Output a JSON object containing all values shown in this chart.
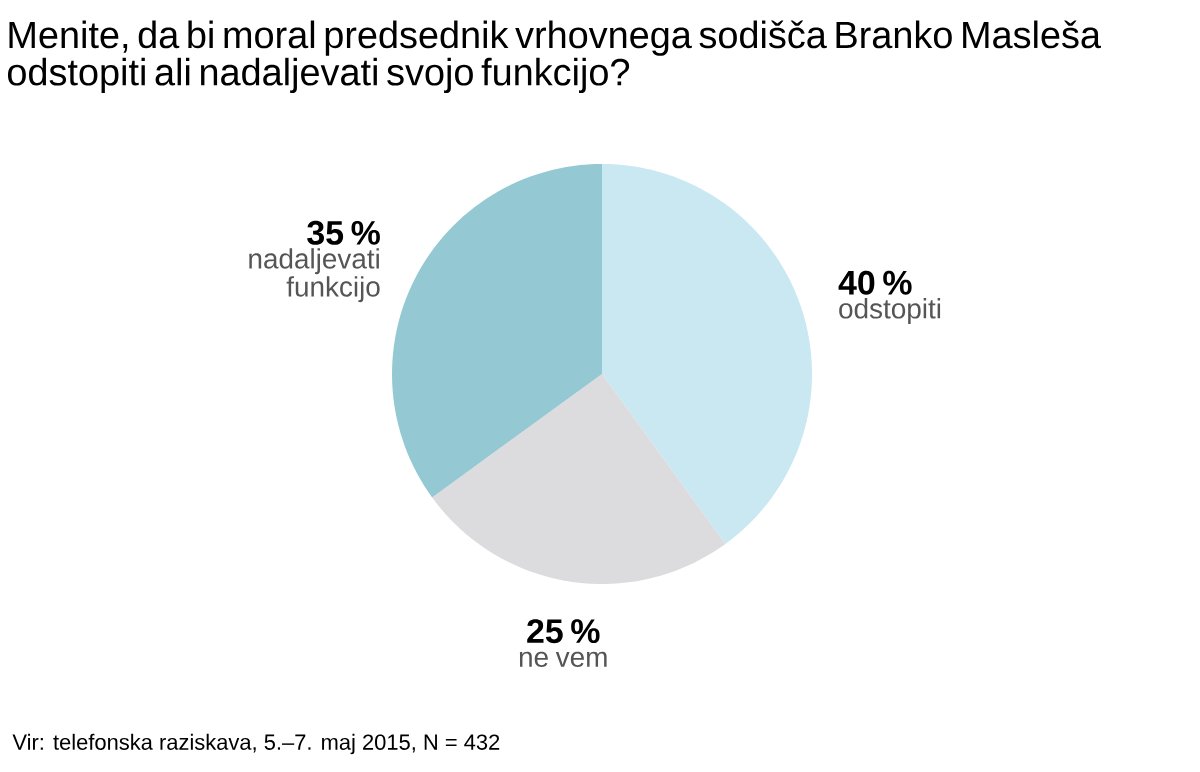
{
  "chart_data": {
    "type": "pie",
    "title": "Menite, da bi moral predsednik vrhovnega sodišča Branko Masleša odstopiti ali nadaljevati svojo funkcijo?",
    "categories": [
      "odstopiti",
      "ne vem",
      "nadaljevati funkcijo"
    ],
    "values": [
      40,
      25,
      35
    ],
    "value_labels": [
      "40 %",
      "25 %",
      "35 %"
    ],
    "colors": [
      "#c9e8f2",
      "#dcdcde",
      "#94c9d3"
    ],
    "annotations": [
      "Vir: telefonska raziskava, 5.–7. maj 2015, N = 432"
    ]
  }
}
